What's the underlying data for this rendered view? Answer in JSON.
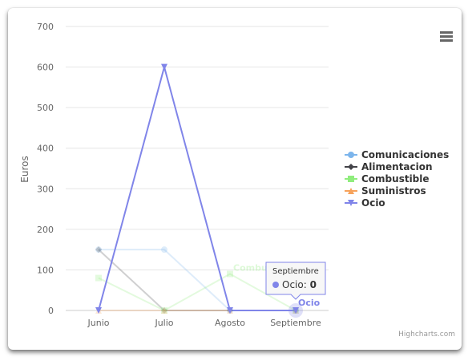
{
  "menu_icon": "hamburger-menu-icon",
  "credits": "Highcharts.com",
  "chart_data": {
    "type": "line",
    "title": "",
    "xlabel": "",
    "ylabel": "Euros",
    "ylim": [
      0,
      700
    ],
    "yticks": [
      0,
      100,
      200,
      300,
      400,
      500,
      600,
      700
    ],
    "grid": true,
    "legend_position": "right",
    "categories": [
      "Junio",
      "Julio",
      "Agosto",
      "Septiembre"
    ],
    "series": [
      {
        "name": "Comunicaciones",
        "color": "#7cb5ec",
        "marker": "circle",
        "values": [
          150,
          150,
          0,
          0
        ],
        "dimmed": true
      },
      {
        "name": "Alimentacion",
        "color": "#434348",
        "marker": "diamond",
        "values": [
          150,
          0,
          0,
          0
        ],
        "dimmed": true
      },
      {
        "name": "Combustible",
        "color": "#90ed7d",
        "marker": "square",
        "values": [
          80,
          0,
          90,
          0
        ],
        "dimmed": true,
        "data_label": "Combustible"
      },
      {
        "name": "Suministros",
        "color": "#f7a35c",
        "marker": "triangle",
        "values": [
          0,
          0,
          0,
          0
        ],
        "dimmed": true
      },
      {
        "name": "Ocio",
        "color": "#8085e9",
        "marker": "triangle-down",
        "values": [
          0,
          600,
          0,
          0
        ],
        "dimmed": false,
        "data_label": "Ocio"
      }
    ],
    "tooltip": {
      "category": "Septiembre",
      "series": "Ocio",
      "separator": ": ",
      "value": "0"
    }
  }
}
